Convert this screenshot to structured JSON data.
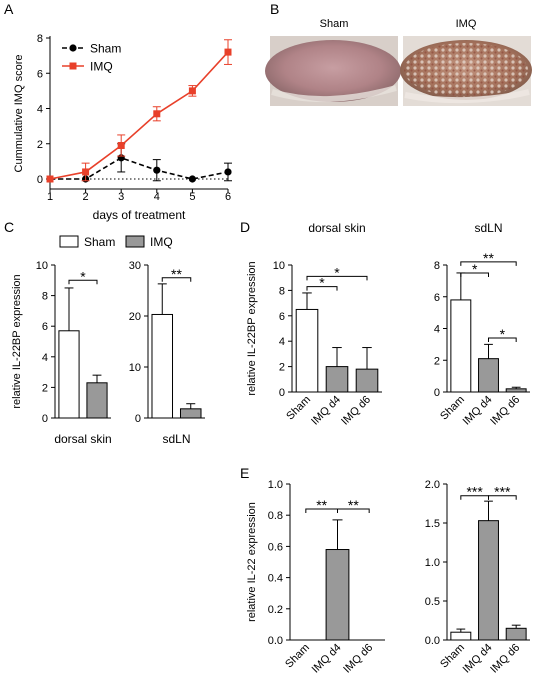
{
  "figure": {
    "panel_labels": [
      "A",
      "B",
      "C",
      "D",
      "E"
    ],
    "photos": {
      "sham_label": "Sham",
      "imq_label": "IMQ"
    },
    "panel_c_legend": [
      {
        "name": "Sham",
        "fill": "#ffffff"
      },
      {
        "name": "IMQ",
        "fill": "#999999"
      }
    ]
  },
  "colors": {
    "imq_line": "#e8402a",
    "sham_line": "#000000",
    "bar_gray": "#999999",
    "bar_white": "#ffffff"
  },
  "chart_data": [
    {
      "id": "A",
      "type": "line",
      "xlabel": "days of treatment",
      "ylabel": "Cummulative IMQ score",
      "x": [
        1,
        2,
        3,
        4,
        5,
        6
      ],
      "xlim": [
        1,
        6
      ],
      "ylim": [
        0,
        8
      ],
      "yticks": [
        0,
        2,
        4,
        6,
        8
      ],
      "legend_position": "top-left",
      "reference_line": {
        "y": 0,
        "style": "dotted"
      },
      "series": [
        {
          "name": "Sham",
          "values": [
            0,
            0,
            1.2,
            0.5,
            0,
            0.4
          ],
          "error": [
            0,
            0,
            0.8,
            0.6,
            0,
            0.5
          ],
          "marker": "circle",
          "line_style": "dashed"
        },
        {
          "name": "IMQ",
          "values": [
            0,
            0.4,
            1.9,
            3.7,
            5.0,
            7.2
          ],
          "error": [
            0,
            0.5,
            0.6,
            0.4,
            0.3,
            0.7
          ],
          "marker": "square",
          "line_style": "solid"
        }
      ]
    },
    {
      "id": "C1",
      "type": "bar",
      "ylabel": "relative IL-22BP expression",
      "xlabel": "dorsal skin",
      "categories": [
        "Sham",
        "IMQ"
      ],
      "values": [
        5.7,
        2.3
      ],
      "errors": [
        2.8,
        0.5
      ],
      "ylim": [
        0,
        10
      ],
      "yticks": [
        0,
        2,
        4,
        6,
        8,
        10
      ],
      "show_category_labels": false,
      "significance": [
        {
          "from": 0,
          "to": 1,
          "label": "*",
          "value": 9.0
        }
      ]
    },
    {
      "id": "C2",
      "type": "bar",
      "xlabel": "sdLN",
      "categories": [
        "Sham",
        "IMQ"
      ],
      "values": [
        20.3,
        1.8
      ],
      "errors": [
        6.0,
        1.0
      ],
      "ylim": [
        0,
        30
      ],
      "yticks": [
        0,
        10,
        20,
        30
      ],
      "show_category_labels": false,
      "significance": [
        {
          "from": 0,
          "to": 1,
          "label": "**",
          "value": 27.5
        }
      ]
    },
    {
      "id": "D1",
      "type": "bar",
      "title": "dorsal skin",
      "ylabel": "relative IL-22BP expression",
      "categories": [
        "Sham",
        "IMQ d4",
        "IMQ d6"
      ],
      "values": [
        6.5,
        2.0,
        1.8
      ],
      "errors": [
        1.3,
        1.5,
        1.7
      ],
      "ylim": [
        0,
        10
      ],
      "yticks": [
        0,
        2,
        4,
        6,
        8,
        10
      ],
      "show_category_labels": true,
      "significance": [
        {
          "from": 0,
          "to": 1,
          "label": "*",
          "value": 8.3
        },
        {
          "from": 0,
          "to": 2,
          "label": "*",
          "value": 9.1
        }
      ]
    },
    {
      "id": "D2",
      "type": "bar",
      "title": "sdLN",
      "categories": [
        "Sham",
        "IMQ d4",
        "IMQ d6"
      ],
      "values": [
        5.8,
        2.1,
        0.2
      ],
      "errors": [
        1.7,
        0.9,
        0.1
      ],
      "ylim": [
        0,
        8
      ],
      "yticks": [
        0,
        2,
        4,
        6,
        8
      ],
      "show_category_labels": true,
      "significance": [
        {
          "from": 0,
          "to": 1,
          "label": "*",
          "value": 7.5
        },
        {
          "from": 0,
          "to": 2,
          "label": "**",
          "value": 8.2
        },
        {
          "from": 1,
          "to": 2,
          "label": "*",
          "value": 3.4
        }
      ]
    },
    {
      "id": "E1",
      "type": "bar",
      "ylabel": "relative IL-22 expression",
      "categories": [
        "Sham",
        "IMQ d4",
        "IMQ d6"
      ],
      "values": [
        0,
        0.58,
        0
      ],
      "errors": [
        0,
        0.19,
        0
      ],
      "ylim": [
        0,
        1.0
      ],
      "yticks": [
        0.0,
        0.2,
        0.4,
        0.6,
        0.8,
        1.0
      ],
      "tick_decimals": 1,
      "show_category_labels": true,
      "significance": [
        {
          "from": 0,
          "to": 1,
          "label": "**",
          "value": 0.84
        },
        {
          "from": 1,
          "to": 2,
          "label": "**",
          "value": 0.84
        }
      ]
    },
    {
      "id": "E2",
      "type": "bar",
      "categories": [
        "Sham",
        "IMQ d4",
        "IMQ d6"
      ],
      "values": [
        0.1,
        1.53,
        0.15
      ],
      "errors": [
        0.04,
        0.25,
        0.04
      ],
      "ylim": [
        0,
        2.0
      ],
      "yticks": [
        0.0,
        0.5,
        1.0,
        1.5,
        2.0
      ],
      "tick_decimals": 1,
      "show_category_labels": true,
      "significance": [
        {
          "from": 0,
          "to": 1,
          "label": "***",
          "value": 1.85
        },
        {
          "from": 1,
          "to": 2,
          "label": "***",
          "value": 1.85
        }
      ]
    }
  ]
}
